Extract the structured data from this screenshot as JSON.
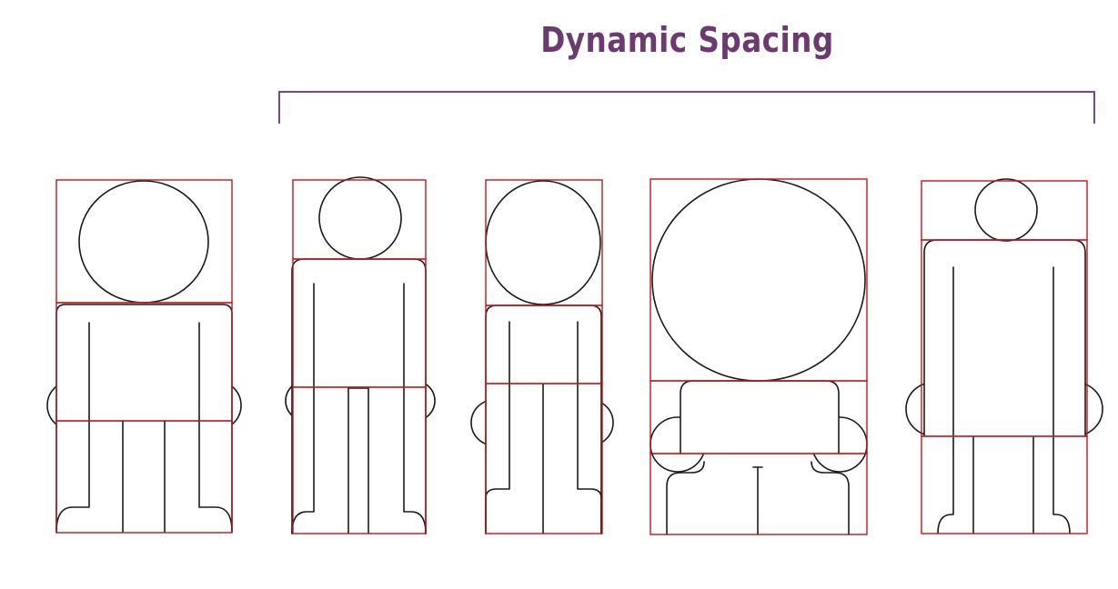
{
  "title": "Dynamic Spacing",
  "colors": {
    "title": "#6b3a6e",
    "bracket": "#7a4a7e",
    "guide_box": "#c0161c",
    "outline": "#1a1a1a"
  },
  "figures": [
    {
      "name": "figure-1",
      "bracketed": false
    },
    {
      "name": "figure-2",
      "bracketed": true
    },
    {
      "name": "figure-3",
      "bracketed": true
    },
    {
      "name": "figure-4",
      "bracketed": true
    },
    {
      "name": "figure-5",
      "bracketed": true
    }
  ]
}
